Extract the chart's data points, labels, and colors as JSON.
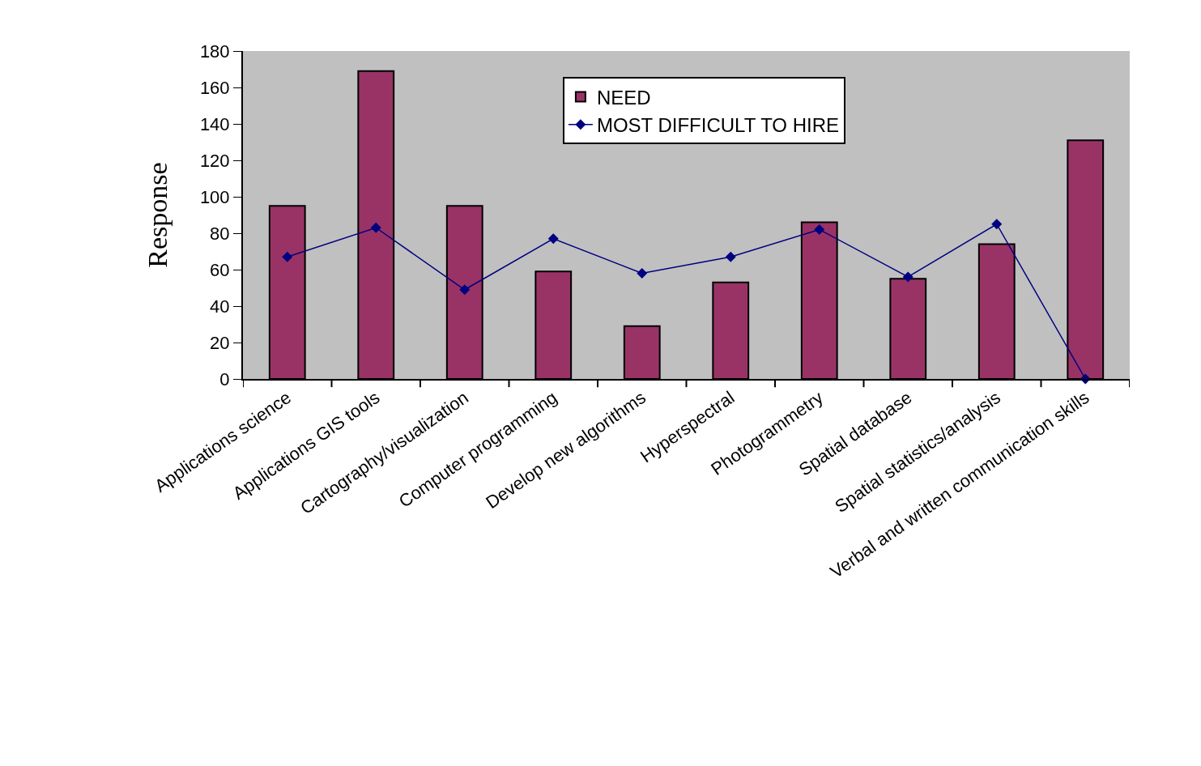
{
  "chart_data": {
    "type": "bar",
    "ylabel": "Response",
    "categories": [
      "Applications science",
      "Applications GIS tools",
      "Cartography/visualization",
      "Computer programming",
      "Develop new algorithms",
      "Hyperspectral",
      "Photogrammetry",
      "Spatial database",
      "Spatial statistics/analysis",
      "Verbal and written communication skills"
    ],
    "series": [
      {
        "name": "NEED",
        "color": "#993366",
        "values": [
          95,
          169,
          95,
          59,
          29,
          53,
          86,
          55,
          74,
          131
        ]
      },
      {
        "name": "MOST DIFFICULT TO HIRE",
        "type": "line",
        "color": "#000080",
        "marker": "diamond",
        "values": [
          67,
          83,
          49,
          77,
          58,
          67,
          82,
          56,
          85,
          0
        ]
      }
    ],
    "ylim": [
      0,
      180
    ],
    "yticks": [
      0,
      20,
      40,
      60,
      80,
      100,
      120,
      140,
      160,
      180
    ],
    "grid": false,
    "legend": "top"
  }
}
